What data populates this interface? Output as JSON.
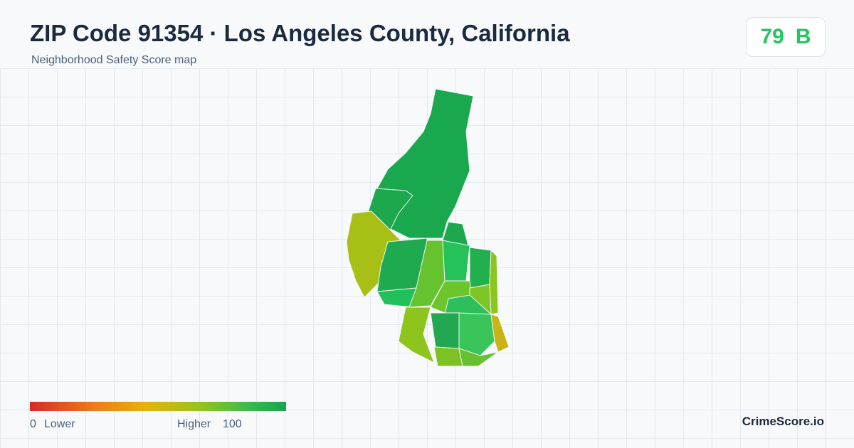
{
  "header": {
    "title": "ZIP Code 91354 · Los Angeles County, California",
    "subtitle": "Neighborhood Safety Score map"
  },
  "score": {
    "value": 79,
    "grade": "B"
  },
  "legend": {
    "min": 0,
    "min_label": "Lower",
    "max_label": "Higher",
    "max": 100
  },
  "brand": "CrimeScore.io"
}
